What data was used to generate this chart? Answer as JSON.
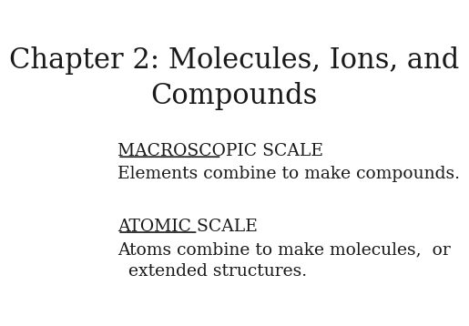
{
  "background_color": "#ffffff",
  "title_line1": "Chapter 2: Molecules, Ions, and",
  "title_line2": "Compounds",
  "title_fontsize": 22,
  "title_font": "serif",
  "section1_header": "MACROSCOPIC SCALE",
  "section1_body": "Elements combine to make compounds.",
  "section2_header": "ATOMIC SCALE",
  "section2_body_line1": "Atoms combine to make molecules,  or",
  "section2_body_line2": "  extended structures.",
  "body_fontsize": 13.5,
  "header_fontsize": 13.5,
  "text_color": "#1a1a1a",
  "underline_color": "#1a1a1a"
}
